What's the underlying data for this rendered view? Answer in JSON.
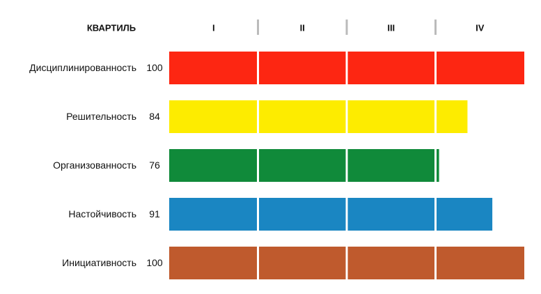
{
  "chart_data": {
    "type": "bar",
    "orientation": "horizontal",
    "column_header": "КВАРТИЛЬ",
    "quartiles": [
      "I",
      "II",
      "III",
      "IV"
    ],
    "categories": [
      "Дисциплинированность",
      "Решительность",
      "Организованность",
      "Настойчивость",
      "Инициативность"
    ],
    "values": [
      100,
      84,
      76,
      91,
      100
    ],
    "colors": [
      "#fd2612",
      "#fdec00",
      "#108a3a",
      "#1a86c2",
      "#bf5a2d"
    ],
    "xlim": [
      0,
      100
    ]
  }
}
